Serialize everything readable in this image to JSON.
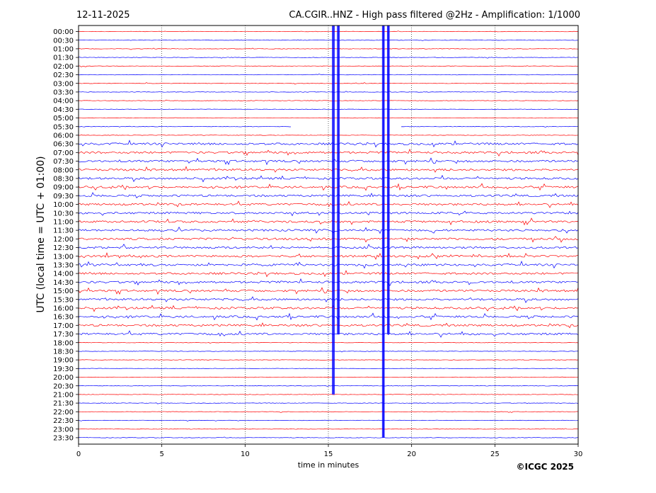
{
  "header": {
    "date": "12-11-2025",
    "title": "CA.CGIR..HNZ - High pass filtered @2Hz - Amplification: 1/1000"
  },
  "footer": {
    "copyright": "©ICGC 2025"
  },
  "chart_data": {
    "type": "line",
    "title": "CA.CGIR..HNZ - High pass filtered @2Hz - Amplification: 1/1000",
    "xlabel": "time in minutes",
    "ylabel": "UTC (local time = UTC + 01:00)",
    "xlim": [
      0,
      30
    ],
    "x_ticks": [
      0,
      5,
      10,
      15,
      20,
      25,
      30
    ],
    "grid": "vertical dotted at x ticks",
    "row_labels": [
      "00:00",
      "00:30",
      "01:00",
      "01:30",
      "02:00",
      "02:30",
      "03:00",
      "03:30",
      "04:00",
      "04:30",
      "05:00",
      "05:30",
      "06:00",
      "06:30",
      "07:00",
      "07:30",
      "08:00",
      "08:30",
      "09:00",
      "09:30",
      "10:00",
      "10:30",
      "11:00",
      "11:30",
      "12:00",
      "12:30",
      "13:00",
      "13:30",
      "14:00",
      "14:30",
      "15:00",
      "15:30",
      "16:00",
      "16:30",
      "17:00",
      "17:30",
      "18:00",
      "18:30",
      "19:00",
      "19:30",
      "20:00",
      "20:30",
      "21:00",
      "21:30",
      "22:00",
      "22:30",
      "23:00",
      "23:30"
    ],
    "trace_colors": [
      "#0000ff",
      "#ff0000"
    ],
    "noisy_rows": [
      "06:30",
      "07:00",
      "07:30",
      "08:00",
      "08:30",
      "09:00",
      "09:30",
      "10:00",
      "10:30",
      "11:00",
      "11:30",
      "12:00",
      "12:30",
      "13:00",
      "13:30",
      "14:00",
      "14:30",
      "15:00",
      "15:30",
      "16:00",
      "16:30",
      "17:00",
      "17:30"
    ],
    "vertical_spikes": [
      {
        "x": 15.3,
        "from": "00:00",
        "to": "21:00"
      },
      {
        "x": 15.6,
        "from": "00:00",
        "to": "17:30"
      },
      {
        "x": 18.3,
        "from": "00:00",
        "to": "23:30"
      },
      {
        "x": 18.6,
        "from": "00:00",
        "to": "17:30"
      }
    ],
    "gap": {
      "row": "05:30",
      "from_x": 12.8,
      "to_x": 19.3
    }
  }
}
